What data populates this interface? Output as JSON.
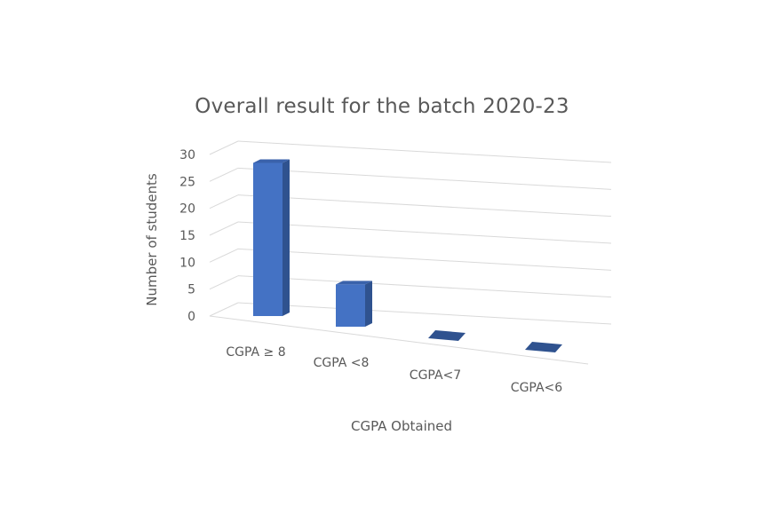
{
  "chart_data": {
    "type": "bar",
    "title": "Overall result for the batch 2020-23",
    "xlabel": "CGPA Obtained",
    "ylabel": "Number of students",
    "categories": [
      "CGPA ≥ 8",
      "CGPA <8",
      "CGPA<7",
      "CGPA<6"
    ],
    "values": [
      29,
      8,
      0,
      0
    ],
    "ylim": [
      0,
      30
    ],
    "yticks": [
      0,
      5,
      10,
      15,
      20,
      25,
      30
    ],
    "grid": true,
    "legend": "none",
    "style": "3d-column",
    "colors": {
      "bar_front": "#4472c4",
      "bar_side": "#2f528f",
      "bar_top": "#3a62ab",
      "grid": "#d9d9d9",
      "text": "#595959"
    }
  }
}
